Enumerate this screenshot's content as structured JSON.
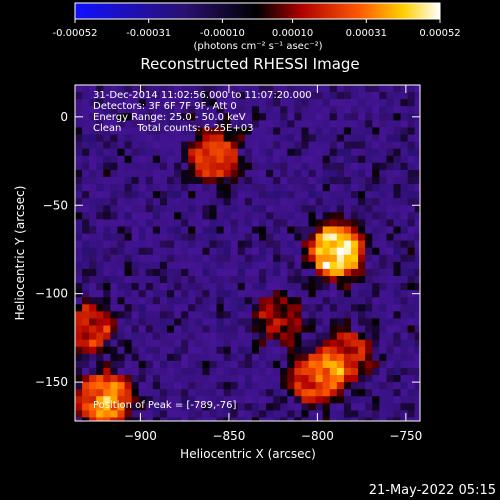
{
  "colorbar": {
    "tick_labels": [
      "-0.00052",
      "-0.00031",
      "-0.00010",
      "0.00010",
      "0.00031",
      "0.00052"
    ],
    "tick_values": [
      -0.00052,
      -0.00031,
      -0.0001,
      0.0001,
      0.00031,
      0.00052
    ],
    "range": [
      -0.00052,
      0.00052
    ],
    "units_label": "(photons cm⁻² s⁻¹ asec⁻²)"
  },
  "chart_data": {
    "type": "heatmap",
    "title": "Reconstructed RHESSI Image",
    "xlabel": "Heliocentric X (arcsec)",
    "ylabel": "Heliocentric Y (arcsec)",
    "xlim": [
      -937,
      -742
    ],
    "ylim": [
      -172,
      18
    ],
    "x_ticks": [
      -900,
      -850,
      -800,
      -750
    ],
    "y_ticks": [
      0,
      -50,
      -100,
      -150
    ],
    "x_tick_labels": [
      "−900",
      "−850",
      "−800",
      "−750"
    ],
    "y_tick_labels": [
      "0",
      "−50",
      "−100",
      "−150"
    ],
    "colormap": "rhessi-blue-black-red-yellow-white",
    "sources": [
      {
        "x": -789,
        "y": -76,
        "relative_intensity": 1.0
      },
      {
        "x": -858,
        "y": -23,
        "relative_intensity": 0.55
      },
      {
        "x": -920,
        "y": -160,
        "relative_intensity": 0.75
      },
      {
        "x": -930,
        "y": -120,
        "relative_intensity": 0.5
      },
      {
        "x": -800,
        "y": -148,
        "relative_intensity": 0.6
      },
      {
        "x": -783,
        "y": -135,
        "relative_intensity": 0.45
      },
      {
        "x": -822,
        "y": -115,
        "relative_intensity": 0.35
      }
    ],
    "annotations": [
      "31-Dec-2014 11:02:56.000 to 11:07:20.000",
      "Detectors: 3F 6F 7F 9F, Att 0",
      "Energy Range: 25.0 - 50.0 keV",
      "Clean     Total counts: 6.25E+03",
      "Position of Peak = [-789,-76]"
    ]
  },
  "footer": {
    "timestamp": "21-May-2022 05:15"
  }
}
